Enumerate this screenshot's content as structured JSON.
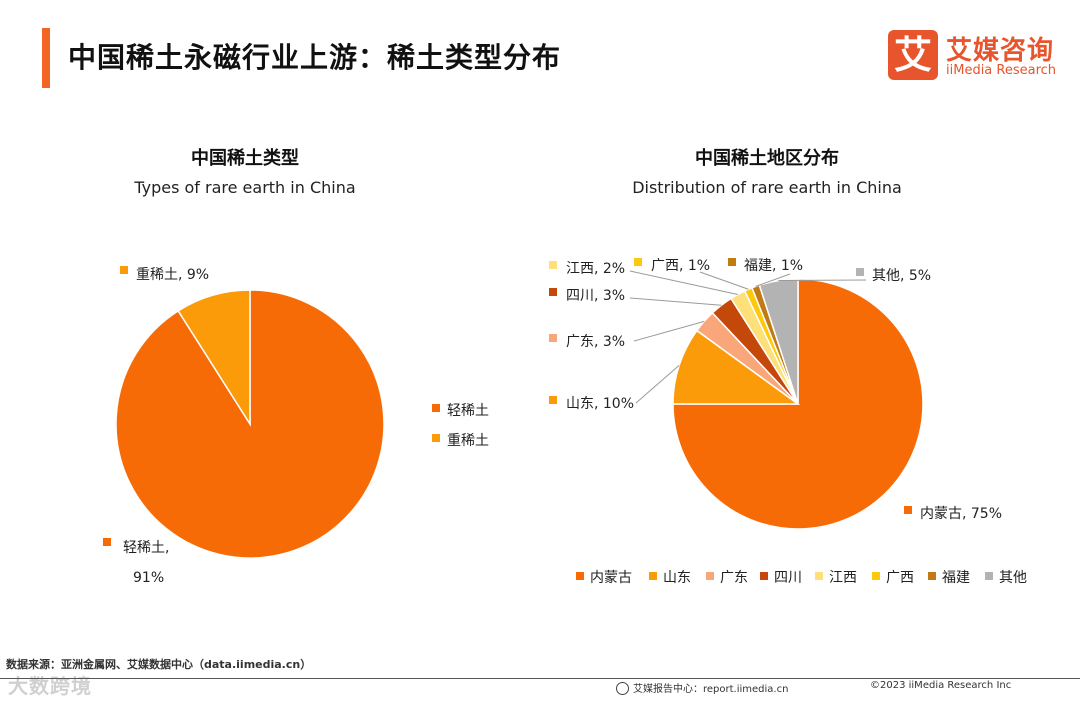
{
  "header": {
    "title": "中国稀土永磁行业上游：稀土类型分布",
    "logo_mark": "艾",
    "logo_cn": "艾媒咨询",
    "logo_en": "iiMedia Research"
  },
  "colors": {
    "accent": "#f26522",
    "logo": "#e8542b"
  },
  "footer": {
    "source": "数据来源：亚洲金属网、艾媒数据中心（data.iimedia.cn）",
    "watermark": "大数跨境",
    "site": "艾媒报告中心：report.iimedia.cn",
    "copyright": "©2023  iiMedia Research  Inc"
  },
  "chart_data": [
    {
      "type": "pie",
      "title": "中国稀土类型",
      "subtitle": "Types of rare earth in China",
      "legend_position": "right",
      "start_angle_deg": 0,
      "direction": "clockwise",
      "slices": [
        {
          "name": "轻稀土",
          "value": 91,
          "color": "#f76b06",
          "label": "轻稀土,",
          "label2": "91%"
        },
        {
          "name": "重稀土",
          "value": 9,
          "color": "#fb9b0a",
          "label": "重稀土, 9%"
        }
      ],
      "legend": [
        "轻稀土",
        "重稀土"
      ]
    },
    {
      "type": "pie",
      "title": "中国稀土地区分布",
      "subtitle": "Distribution of  rare earth in China",
      "legend_position": "bottom",
      "start_angle_deg": 0,
      "direction": "clockwise",
      "slices": [
        {
          "name": "内蒙古",
          "value": 75,
          "color": "#f76b06",
          "label": "内蒙古, 75%"
        },
        {
          "name": "山东",
          "value": 10,
          "color": "#fb9b0a",
          "label": "山东, 10%"
        },
        {
          "name": "广东",
          "value": 3,
          "color": "#f9a77a",
          "label": "广东, 3%"
        },
        {
          "name": "四川",
          "value": 3,
          "color": "#c4480a",
          "label": "四川, 3%"
        },
        {
          "name": "江西",
          "value": 2,
          "color": "#fde07a",
          "label": "江西, 2%"
        },
        {
          "name": "广西",
          "value": 1,
          "color": "#fcc90c",
          "label": "广西, 1%"
        },
        {
          "name": "福建",
          "value": 1,
          "color": "#c27a12",
          "label": "福建, 1%"
        },
        {
          "name": "其他",
          "value": 5,
          "color": "#b3b3b3",
          "label": "其他, 5%"
        }
      ],
      "legend": [
        "内蒙古",
        "山东",
        "广东",
        "四川",
        "江西",
        "广西",
        "福建",
        "其他"
      ]
    }
  ]
}
